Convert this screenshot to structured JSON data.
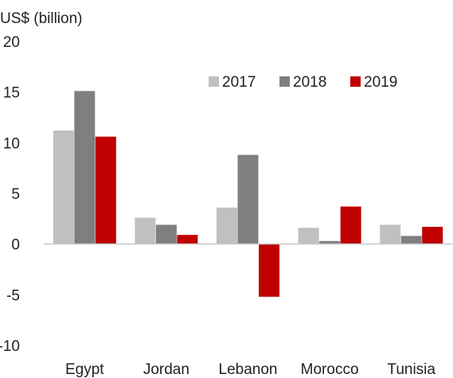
{
  "chart_data": {
    "type": "bar",
    "ylabel": "US$ (billion)",
    "ylim": [
      -10,
      20
    ],
    "yticks": [
      20,
      15,
      10,
      5,
      0,
      -5,
      -10
    ],
    "categories": [
      "Egypt",
      "Jordan",
      "Lebanon",
      "Morocco",
      "Tunisia"
    ],
    "series": [
      {
        "name": "2017",
        "color": "#c0c0c0",
        "values": [
          11.2,
          2.6,
          3.6,
          1.6,
          1.9
        ]
      },
      {
        "name": "2018",
        "color": "#7f7f7f",
        "values": [
          15.1,
          1.9,
          8.8,
          0.3,
          0.8
        ]
      },
      {
        "name": "2019",
        "color": "#c00000",
        "values": [
          10.6,
          0.9,
          -5.2,
          3.7,
          1.7
        ]
      }
    ],
    "legend": "top-right",
    "grid": false
  }
}
